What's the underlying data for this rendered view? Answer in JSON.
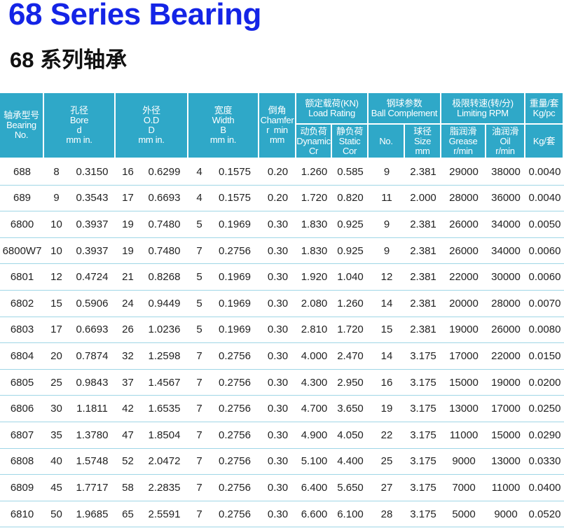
{
  "header": {
    "title": "68 Series Bearing",
    "subtitle": "68 系列轴承"
  },
  "table": {
    "head": [
      [
        "轴承型号",
        "Bearing",
        "No."
      ],
      [
        "孔径",
        "Bore",
        "d",
        "mm in."
      ],
      [
        "外径",
        "O.D",
        "D",
        "mm in."
      ],
      [
        "宽度",
        "Width",
        "B",
        "mm in."
      ],
      [
        "倒角",
        "Chamfer",
        "r  min",
        "mm"
      ]
    ],
    "groups": [
      [
        "额定载荷(KN)",
        "Load Rating"
      ],
      [
        "钢球参数",
        "Ball Complement"
      ],
      [
        "极限转速(转/分)",
        "Limiting RPM"
      ],
      [
        "重量/套",
        "Kg/pc"
      ]
    ],
    "subhead": [
      [
        "动负荷",
        "Dynamic",
        "Cr"
      ],
      [
        "静负荷",
        "Static",
        "Cor"
      ],
      [
        "No."
      ],
      [
        "球径",
        "Size",
        "mm"
      ],
      [
        "脂润滑",
        "Grease",
        "r/min"
      ],
      [
        "油润滑",
        "Oil",
        "r/min"
      ],
      [
        "Kg/套"
      ]
    ],
    "rows": [
      [
        "688",
        "8",
        "0.3150",
        "16",
        "0.6299",
        "4",
        "0.1575",
        "0.20",
        "1.260",
        "0.585",
        "9",
        "2.381",
        "29000",
        "38000",
        "0.0040"
      ],
      [
        "689",
        "9",
        "0.3543",
        "17",
        "0.6693",
        "4",
        "0.1575",
        "0.20",
        "1.720",
        "0.820",
        "11",
        "2.000",
        "28000",
        "36000",
        "0.0040"
      ],
      [
        "6800",
        "10",
        "0.3937",
        "19",
        "0.7480",
        "5",
        "0.1969",
        "0.30",
        "1.830",
        "0.925",
        "9",
        "2.381",
        "26000",
        "34000",
        "0.0050"
      ],
      [
        "6800W7",
        "10",
        "0.3937",
        "19",
        "0.7480",
        "7",
        "0.2756",
        "0.30",
        "1.830",
        "0.925",
        "9",
        "2.381",
        "26000",
        "34000",
        "0.0060"
      ],
      [
        "6801",
        "12",
        "0.4724",
        "21",
        "0.8268",
        "5",
        "0.1969",
        "0.30",
        "1.920",
        "1.040",
        "12",
        "2.381",
        "22000",
        "30000",
        "0.0060"
      ],
      [
        "6802",
        "15",
        "0.5906",
        "24",
        "0.9449",
        "5",
        "0.1969",
        "0.30",
        "2.080",
        "1.260",
        "14",
        "2.381",
        "20000",
        "28000",
        "0.0070"
      ],
      [
        "6803",
        "17",
        "0.6693",
        "26",
        "1.0236",
        "5",
        "0.1969",
        "0.30",
        "2.810",
        "1.720",
        "15",
        "2.381",
        "19000",
        "26000",
        "0.0080"
      ],
      [
        "6804",
        "20",
        "0.7874",
        "32",
        "1.2598",
        "7",
        "0.2756",
        "0.30",
        "4.000",
        "2.470",
        "14",
        "3.175",
        "17000",
        "22000",
        "0.0150"
      ],
      [
        "6805",
        "25",
        "0.9843",
        "37",
        "1.4567",
        "7",
        "0.2756",
        "0.30",
        "4.300",
        "2.950",
        "16",
        "3.175",
        "15000",
        "19000",
        "0.0200"
      ],
      [
        "6806",
        "30",
        "1.1811",
        "42",
        "1.6535",
        "7",
        "0.2756",
        "0.30",
        "4.700",
        "3.650",
        "19",
        "3.175",
        "13000",
        "17000",
        "0.0250"
      ],
      [
        "6807",
        "35",
        "1.3780",
        "47",
        "1.8504",
        "7",
        "0.2756",
        "0.30",
        "4.900",
        "4.050",
        "22",
        "3.175",
        "11000",
        "15000",
        "0.0290"
      ],
      [
        "6808",
        "40",
        "1.5748",
        "52",
        "2.0472",
        "7",
        "0.2756",
        "0.30",
        "5.100",
        "4.400",
        "25",
        "3.175",
        "9000",
        "13000",
        "0.0330"
      ],
      [
        "6809",
        "45",
        "1.7717",
        "58",
        "2.2835",
        "7",
        "0.2756",
        "0.30",
        "6.400",
        "5.650",
        "27",
        "3.175",
        "7000",
        "11000",
        "0.0400"
      ],
      [
        "6810",
        "50",
        "1.9685",
        "65",
        "2.5591",
        "7",
        "0.2756",
        "0.30",
        "6.600",
        "6.100",
        "28",
        "3.175",
        "5000",
        "9000",
        "0.0520"
      ]
    ]
  }
}
